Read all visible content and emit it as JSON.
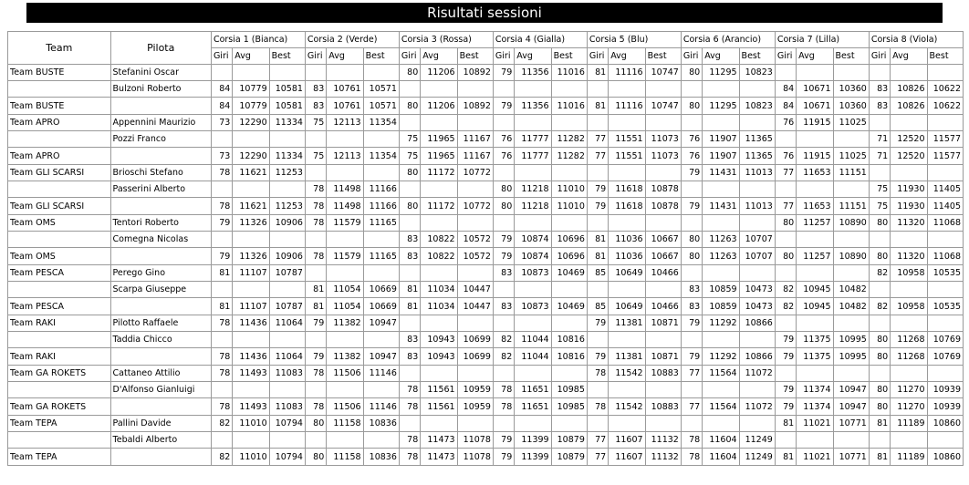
{
  "title": "Risultati sessioni",
  "headers": {
    "team": "Team",
    "pilota": "Pilota",
    "sub": [
      "Giri",
      "Avg",
      "Best"
    ],
    "corsie": [
      "Corsia 1 (Bianca)",
      "Corsia 2 (Verde)",
      "Corsia 3 (Rossa)",
      "Corsia 4 (Gialla)",
      "Corsia 5 (Blu)",
      "Corsia 6 (Arancio)",
      "Corsia 7 (Lilla)",
      "Corsia 8 (Viola)"
    ]
  },
  "rows": [
    {
      "kind": "pilot",
      "team": "Team BUSTE",
      "pilot": "Stefanini Oscar",
      "cells": [
        "",
        "",
        "",
        "",
        "",
        "",
        "80",
        "11206",
        "10892",
        "79",
        "11356",
        "11016",
        "81",
        "11116",
        "10747",
        "80",
        "11295",
        "10823",
        "",
        "",
        "",
        "",
        "",
        ""
      ]
    },
    {
      "kind": "pilot",
      "team": "",
      "pilot": "Bulzoni Roberto",
      "cells": [
        "84",
        "10779",
        "10581",
        "83",
        "10761",
        "10571",
        "",
        "",
        "",
        "",
        "",
        "",
        "",
        "",
        "",
        "",
        "",
        "",
        "84",
        "10671",
        "10360",
        "83",
        "10826",
        "10622"
      ]
    },
    {
      "kind": "total",
      "team": "Team BUSTE",
      "pilot": "",
      "cells": [
        "84",
        "10779",
        "10581",
        "83",
        "10761",
        "10571",
        "80",
        "11206",
        "10892",
        "79",
        "11356",
        "11016",
        "81",
        "11116",
        "10747",
        "80",
        "11295",
        "10823",
        "84",
        "10671",
        "10360",
        "83",
        "10826",
        "10622"
      ]
    },
    {
      "kind": "pilot",
      "team": "Team APRO",
      "pilot": "Appennini Maurizio",
      "cells": [
        "73",
        "12290",
        "11334",
        "75",
        "12113",
        "11354",
        "",
        "",
        "",
        "",
        "",
        "",
        "",
        "",
        "",
        "",
        "",
        "",
        "76",
        "11915",
        "11025",
        "",
        "",
        ""
      ]
    },
    {
      "kind": "pilot",
      "team": "",
      "pilot": "Pozzi Franco",
      "cells": [
        "",
        "",
        "",
        "",
        "",
        "",
        "75",
        "11965",
        "11167",
        "76",
        "11777",
        "11282",
        "77",
        "11551",
        "11073",
        "76",
        "11907",
        "11365",
        "",
        "",
        "",
        "71",
        "12520",
        "11577"
      ]
    },
    {
      "kind": "total",
      "team": "Team APRO",
      "pilot": "",
      "cells": [
        "73",
        "12290",
        "11334",
        "75",
        "12113",
        "11354",
        "75",
        "11965",
        "11167",
        "76",
        "11777",
        "11282",
        "77",
        "11551",
        "11073",
        "76",
        "11907",
        "11365",
        "76",
        "11915",
        "11025",
        "71",
        "12520",
        "11577"
      ]
    },
    {
      "kind": "pilot",
      "team": "Team GLI SCARSI",
      "pilot": "Brioschi Stefano",
      "cells": [
        "78",
        "11621",
        "11253",
        "",
        "",
        "",
        "80",
        "11172",
        "10772",
        "",
        "",
        "",
        "",
        "",
        "",
        "79",
        "11431",
        "11013",
        "77",
        "11653",
        "11151",
        "",
        "",
        ""
      ]
    },
    {
      "kind": "pilot",
      "team": "",
      "pilot": "Passerini Alberto",
      "cells": [
        "",
        "",
        "",
        "78",
        "11498",
        "11166",
        "",
        "",
        "",
        "80",
        "11218",
        "11010",
        "79",
        "11618",
        "10878",
        "",
        "",
        "",
        "",
        "",
        "",
        "75",
        "11930",
        "11405"
      ]
    },
    {
      "kind": "total",
      "team": "Team GLI SCARSI",
      "pilot": "",
      "cells": [
        "78",
        "11621",
        "11253",
        "78",
        "11498",
        "11166",
        "80",
        "11172",
        "10772",
        "80",
        "11218",
        "11010",
        "79",
        "11618",
        "10878",
        "79",
        "11431",
        "11013",
        "77",
        "11653",
        "11151",
        "75",
        "11930",
        "11405"
      ]
    },
    {
      "kind": "pilot",
      "team": "Team OMS",
      "pilot": "Tentori Roberto",
      "cells": [
        "79",
        "11326",
        "10906",
        "78",
        "11579",
        "11165",
        "",
        "",
        "",
        "",
        "",
        "",
        "",
        "",
        "",
        "",
        "",
        "",
        "80",
        "11257",
        "10890",
        "80",
        "11320",
        "11068"
      ]
    },
    {
      "kind": "pilot",
      "team": "",
      "pilot": "Comegna Nicolas",
      "cells": [
        "",
        "",
        "",
        "",
        "",
        "",
        "83",
        "10822",
        "10572",
        "79",
        "10874",
        "10696",
        "81",
        "11036",
        "10667",
        "80",
        "11263",
        "10707",
        "",
        "",
        "",
        "",
        "",
        ""
      ]
    },
    {
      "kind": "total",
      "team": "Team OMS",
      "pilot": "",
      "cells": [
        "79",
        "11326",
        "10906",
        "78",
        "11579",
        "11165",
        "83",
        "10822",
        "10572",
        "79",
        "10874",
        "10696",
        "81",
        "11036",
        "10667",
        "80",
        "11263",
        "10707",
        "80",
        "11257",
        "10890",
        "80",
        "11320",
        "11068"
      ]
    },
    {
      "kind": "pilot",
      "team": "Team PESCA",
      "pilot": "Perego Gino",
      "cells": [
        "81",
        "11107",
        "10787",
        "",
        "",
        "",
        "",
        "",
        "",
        "83",
        "10873",
        "10469",
        "85",
        "10649",
        "10466",
        "",
        "",
        "",
        "",
        "",
        "",
        "82",
        "10958",
        "10535"
      ]
    },
    {
      "kind": "pilot",
      "team": "",
      "pilot": "Scarpa Giuseppe",
      "cells": [
        "",
        "",
        "",
        "81",
        "11054",
        "10669",
        "81",
        "11034",
        "10447",
        "",
        "",
        "",
        "",
        "",
        "",
        "83",
        "10859",
        "10473",
        "82",
        "10945",
        "10482",
        "",
        "",
        ""
      ]
    },
    {
      "kind": "total",
      "team": "Team PESCA",
      "pilot": "",
      "cells": [
        "81",
        "11107",
        "10787",
        "81",
        "11054",
        "10669",
        "81",
        "11034",
        "10447",
        "83",
        "10873",
        "10469",
        "85",
        "10649",
        "10466",
        "83",
        "10859",
        "10473",
        "82",
        "10945",
        "10482",
        "82",
        "10958",
        "10535"
      ]
    },
    {
      "kind": "pilot",
      "team": "Team RAKI",
      "pilot": "Pilotto Raffaele",
      "cells": [
        "78",
        "11436",
        "11064",
        "79",
        "11382",
        "10947",
        "",
        "",
        "",
        "",
        "",
        "",
        "79",
        "11381",
        "10871",
        "79",
        "11292",
        "10866",
        "",
        "",
        "",
        "",
        "",
        ""
      ]
    },
    {
      "kind": "pilot",
      "team": "",
      "pilot": "Taddia Chicco",
      "cells": [
        "",
        "",
        "",
        "",
        "",
        "",
        "83",
        "10943",
        "10699",
        "82",
        "11044",
        "10816",
        "",
        "",
        "",
        "",
        "",
        "",
        "79",
        "11375",
        "10995",
        "80",
        "11268",
        "10769"
      ]
    },
    {
      "kind": "total",
      "team": "Team RAKI",
      "pilot": "",
      "cells": [
        "78",
        "11436",
        "11064",
        "79",
        "11382",
        "10947",
        "83",
        "10943",
        "10699",
        "82",
        "11044",
        "10816",
        "79",
        "11381",
        "10871",
        "79",
        "11292",
        "10866",
        "79",
        "11375",
        "10995",
        "80",
        "11268",
        "10769"
      ]
    },
    {
      "kind": "pilot",
      "team": "Team GA ROKETS",
      "pilot": "Cattaneo Attilio",
      "cells": [
        "78",
        "11493",
        "11083",
        "78",
        "11506",
        "11146",
        "",
        "",
        "",
        "",
        "",
        "",
        "78",
        "11542",
        "10883",
        "77",
        "11564",
        "11072",
        "",
        "",
        "",
        "",
        "",
        ""
      ]
    },
    {
      "kind": "pilot",
      "team": "",
      "pilot": "D'Alfonso Gianluigi",
      "cells": [
        "",
        "",
        "",
        "",
        "",
        "",
        "78",
        "11561",
        "10959",
        "78",
        "11651",
        "10985",
        "",
        "",
        "",
        "",
        "",
        "",
        "79",
        "11374",
        "10947",
        "80",
        "11270",
        "10939"
      ]
    },
    {
      "kind": "total",
      "team": "Team GA ROKETS",
      "pilot": "",
      "cells": [
        "78",
        "11493",
        "11083",
        "78",
        "11506",
        "11146",
        "78",
        "11561",
        "10959",
        "78",
        "11651",
        "10985",
        "78",
        "11542",
        "10883",
        "77",
        "11564",
        "11072",
        "79",
        "11374",
        "10947",
        "80",
        "11270",
        "10939"
      ]
    },
    {
      "kind": "pilot",
      "team": "Team TEPA",
      "pilot": "Pallini Davide",
      "cells": [
        "82",
        "11010",
        "10794",
        "80",
        "11158",
        "10836",
        "",
        "",
        "",
        "",
        "",
        "",
        "",
        "",
        "",
        "",
        "",
        "",
        "81",
        "11021",
        "10771",
        "81",
        "11189",
        "10860"
      ]
    },
    {
      "kind": "pilot",
      "team": "",
      "pilot": "Tebaldi Alberto",
      "cells": [
        "",
        "",
        "",
        "",
        "",
        "",
        "78",
        "11473",
        "11078",
        "79",
        "11399",
        "10879",
        "77",
        "11607",
        "11132",
        "78",
        "11604",
        "11249",
        "",
        "",
        "",
        "",
        "",
        ""
      ]
    },
    {
      "kind": "total",
      "team": "Team TEPA",
      "pilot": "",
      "cells": [
        "82",
        "11010",
        "10794",
        "80",
        "11158",
        "10836",
        "78",
        "11473",
        "11078",
        "79",
        "11399",
        "10879",
        "77",
        "11607",
        "11132",
        "78",
        "11604",
        "11249",
        "81",
        "11021",
        "10771",
        "81",
        "11189",
        "10860"
      ]
    }
  ]
}
